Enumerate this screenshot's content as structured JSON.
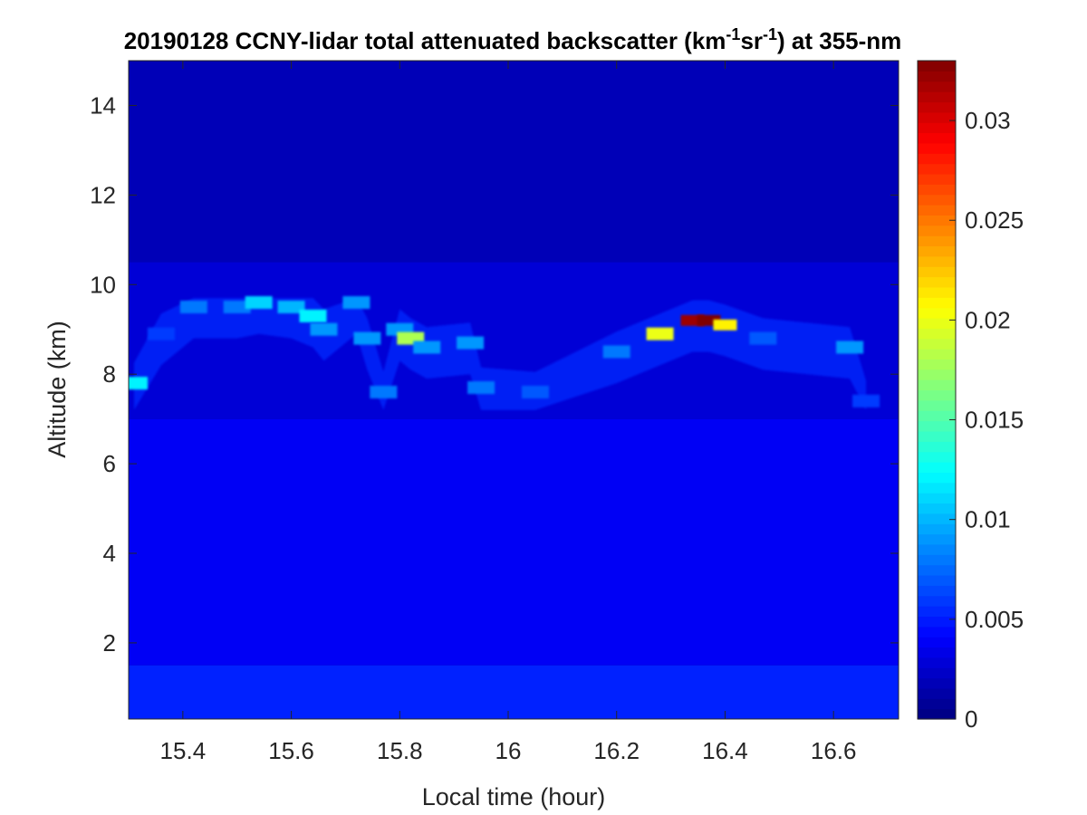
{
  "chart_data": {
    "type": "heatmap",
    "title": {
      "prefix": "20190128 CCNY-lidar total attenuated backscatter (km",
      "sup1": "-1",
      "mid": "sr",
      "sup2": "-1",
      "suffix": ") at 355-nm"
    },
    "xlabel": "Local time (hour)",
    "ylabel": "Altitude (km)",
    "xlim": [
      15.3,
      16.72
    ],
    "ylim": [
      0.3,
      15.0
    ],
    "xticks": [
      15.4,
      15.6,
      15.8,
      16.0,
      16.2,
      16.4,
      16.6
    ],
    "xtick_labels": [
      "15.4",
      "15.6",
      "15.8",
      "16",
      "16.2",
      "16.4",
      "16.6"
    ],
    "yticks": [
      2,
      4,
      6,
      8,
      10,
      12,
      14
    ],
    "ytick_labels": [
      "2",
      "4",
      "6",
      "8",
      "10",
      "12",
      "14"
    ],
    "colorbar": {
      "colormap": "jet",
      "clim": [
        0,
        0.033
      ],
      "ticks": [
        0,
        0.005,
        0.01,
        0.015,
        0.02,
        0.025,
        0.03
      ],
      "tick_labels": [
        "0",
        "0.005",
        "0.01",
        "0.015",
        "0.02",
        "0.025",
        "0.03"
      ]
    },
    "background_levels": [
      {
        "altitude_range_km": [
          0.3,
          1.5
        ],
        "value": 0.0052
      },
      {
        "altitude_range_km": [
          1.5,
          7.0
        ],
        "value": 0.0038
      },
      {
        "altitude_range_km": [
          7.0,
          10.5
        ],
        "value": 0.0028
      },
      {
        "altitude_range_km": [
          10.5,
          15.0
        ],
        "value": 0.0018
      }
    ],
    "cloud_layer": {
      "time_range_hour": [
        15.3,
        16.72
      ],
      "altitude_range_km": [
        7.2,
        9.7
      ],
      "features": [
        {
          "time_hour": 15.31,
          "altitude_km": 7.8,
          "value": 0.012
        },
        {
          "time_hour": 15.36,
          "altitude_km": 8.9,
          "value": 0.006
        },
        {
          "time_hour": 15.42,
          "altitude_km": 9.5,
          "value": 0.008
        },
        {
          "time_hour": 15.5,
          "altitude_km": 9.5,
          "value": 0.008
        },
        {
          "time_hour": 15.54,
          "altitude_km": 9.6,
          "value": 0.011
        },
        {
          "time_hour": 15.6,
          "altitude_km": 9.5,
          "value": 0.01
        },
        {
          "time_hour": 15.64,
          "altitude_km": 9.3,
          "value": 0.012
        },
        {
          "time_hour": 15.66,
          "altitude_km": 9.0,
          "value": 0.009
        },
        {
          "time_hour": 15.72,
          "altitude_km": 9.6,
          "value": 0.009
        },
        {
          "time_hour": 15.74,
          "altitude_km": 8.8,
          "value": 0.009
        },
        {
          "time_hour": 15.77,
          "altitude_km": 7.6,
          "value": 0.008
        },
        {
          "time_hour": 15.8,
          "altitude_km": 9.0,
          "value": 0.009
        },
        {
          "time_hour": 15.82,
          "altitude_km": 8.8,
          "value": 0.018
        },
        {
          "time_hour": 15.85,
          "altitude_km": 8.6,
          "value": 0.009
        },
        {
          "time_hour": 15.93,
          "altitude_km": 8.7,
          "value": 0.009
        },
        {
          "time_hour": 15.95,
          "altitude_km": 7.7,
          "value": 0.008
        },
        {
          "time_hour": 16.05,
          "altitude_km": 7.6,
          "value": 0.007
        },
        {
          "time_hour": 16.2,
          "altitude_km": 8.5,
          "value": 0.008
        },
        {
          "time_hour": 16.28,
          "altitude_km": 8.9,
          "value": 0.02
        },
        {
          "time_hour": 16.34,
          "altitude_km": 9.2,
          "value": 0.032
        },
        {
          "time_hour": 16.37,
          "altitude_km": 9.2,
          "value": 0.033
        },
        {
          "time_hour": 16.4,
          "altitude_km": 9.1,
          "value": 0.021
        },
        {
          "time_hour": 16.47,
          "altitude_km": 8.8,
          "value": 0.007
        },
        {
          "time_hour": 16.63,
          "altitude_km": 8.6,
          "value": 0.009
        },
        {
          "time_hour": 16.66,
          "altitude_km": 7.4,
          "value": 0.006
        }
      ]
    }
  }
}
